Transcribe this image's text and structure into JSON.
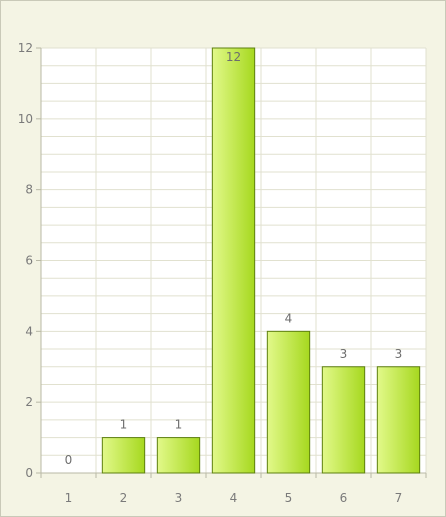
{
  "chart_data": {
    "type": "bar",
    "title": "",
    "xlabel": "",
    "ylabel": "",
    "categories": [
      "1",
      "2",
      "3",
      "4",
      "5",
      "6",
      "7"
    ],
    "values": [
      0,
      1,
      1,
      12,
      4,
      3,
      3
    ],
    "data_labels": [
      "0",
      "1",
      "1",
      "12",
      "4",
      "3",
      "3"
    ],
    "ylim": [
      0,
      12
    ],
    "y_ticks": [
      0,
      2,
      4,
      6,
      8,
      10,
      12
    ],
    "y_tick_labels": [
      "0",
      "2",
      "4",
      "6",
      "8",
      "10",
      "12"
    ],
    "minor_grid_step": 0.5,
    "grid": true,
    "legend": "none",
    "colors": {
      "bar_fill_light": "#e2f98a",
      "bar_fill_dark": "#a6d81f",
      "bar_stroke": "#5d7f10",
      "plot_background": "#ffffff",
      "frame_background": "#f4f4e4",
      "grid_line": "#e1e1cf",
      "axis_line": "#b9b9a6"
    }
  }
}
